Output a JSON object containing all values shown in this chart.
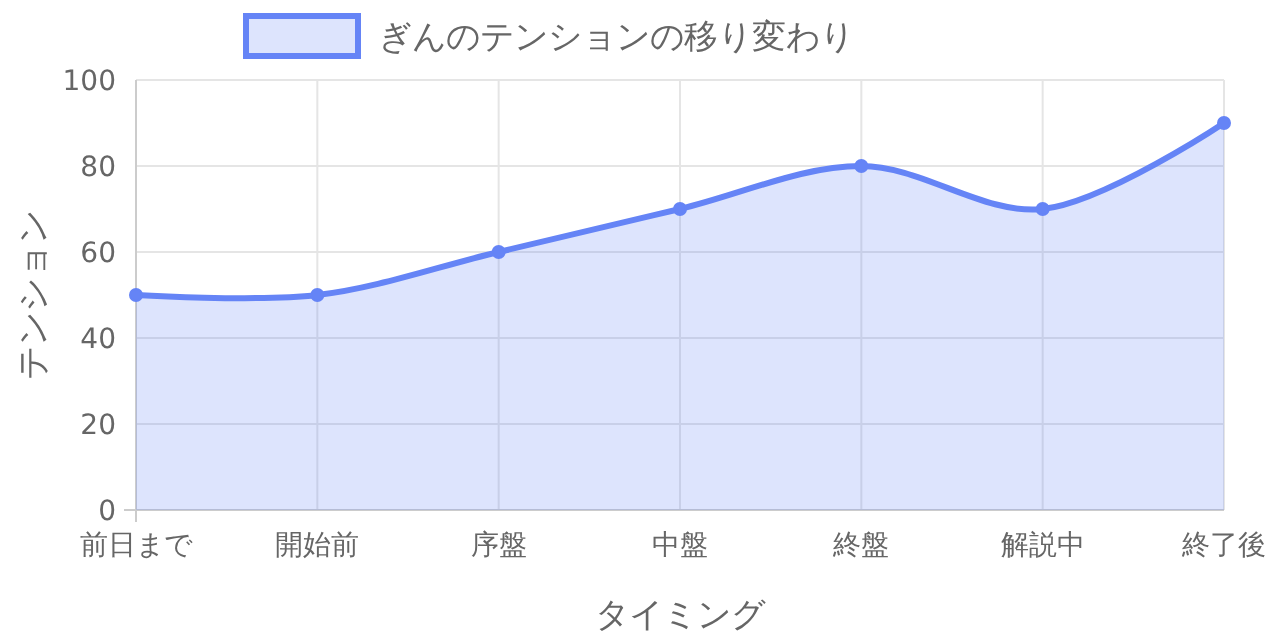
{
  "chart_data": {
    "type": "area",
    "xlabel": "タイミング",
    "ylabel": "テンション",
    "categories": [
      "前日まで",
      "開始前",
      "序盤",
      "中盤",
      "終盤",
      "解説中",
      "終了後"
    ],
    "series": [
      {
        "name": "ぎんのテンションの移り変わり",
        "color": "#6584f6",
        "values": [
          50,
          50,
          60,
          70,
          80,
          70,
          90
        ]
      }
    ],
    "ylim": [
      0,
      100
    ],
    "yticks": [
      0,
      20,
      40,
      60,
      80,
      100
    ],
    "grid": true,
    "legend": "top",
    "marker": "circle",
    "line_style": "solid"
  }
}
